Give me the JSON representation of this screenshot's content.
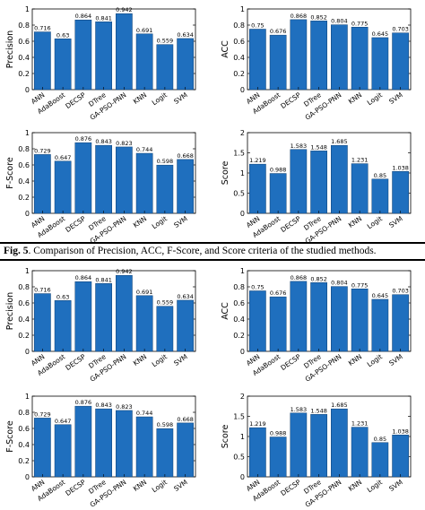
{
  "caption": {
    "label": "Fig. 5",
    "text": ". Comparison of Precision, ACC, F-Score, and Score criteria of the studied methods."
  },
  "colors": {
    "bar": "#1f6fbe",
    "bar_edge": "#0d3f73",
    "axis": "#000000"
  },
  "chart_data": [
    {
      "id": "precision-top",
      "type": "bar",
      "categories": [
        "ANN",
        "AdaBoost",
        "DECSP",
        "DTree",
        "GA-PSO-PNN",
        "KNN",
        "Logit",
        "SVM"
      ],
      "values": [
        0.716,
        0.63,
        0.864,
        0.841,
        0.942,
        0.691,
        0.559,
        0.634
      ],
      "labels": [
        "0.716",
        "0.63",
        "0.864",
        "0.841",
        "0.942",
        "0.691",
        "0.559",
        "0.634"
      ],
      "ylabel": "Precision",
      "ylim": [
        0,
        1
      ],
      "yticks": [
        "0",
        "0.2",
        "0.4",
        "0.6",
        "0.8",
        "1"
      ],
      "ytick_values": [
        0,
        0.2,
        0.4,
        0.6,
        0.8,
        1
      ]
    },
    {
      "id": "acc-top",
      "type": "bar",
      "categories": [
        "ANN",
        "AdaBoost",
        "DECSP",
        "DTree",
        "GA-PSO-PNN",
        "KNN",
        "Logit",
        "SVM"
      ],
      "values": [
        0.75,
        0.676,
        0.868,
        0.852,
        0.804,
        0.775,
        0.645,
        0.703
      ],
      "labels": [
        "0.75",
        "0.676",
        "0.868",
        "0.852",
        "0.804",
        "0.775",
        "0.645",
        "0.703"
      ],
      "ylabel": "ACC",
      "ylim": [
        0,
        1
      ],
      "yticks": [
        "0",
        "0.2",
        "0.4",
        "0.6",
        "0.8",
        "1"
      ],
      "ytick_values": [
        0,
        0.2,
        0.4,
        0.6,
        0.8,
        1
      ]
    },
    {
      "id": "fscore-top",
      "type": "bar",
      "categories": [
        "ANN",
        "AdaBoost",
        "DECSP",
        "DTree",
        "GA-PSO-PNN",
        "KNN",
        "Logit",
        "SVM"
      ],
      "values": [
        0.729,
        0.647,
        0.876,
        0.843,
        0.823,
        0.744,
        0.598,
        0.668
      ],
      "labels": [
        "0.729",
        "0.647",
        "0.876",
        "0.843",
        "0.823",
        "0.744",
        "0.598",
        "0.668"
      ],
      "ylabel": "F-Score",
      "ylim": [
        0,
        1
      ],
      "yticks": [
        "0",
        "0.2",
        "0.4",
        "0.6",
        "0.8",
        "1"
      ],
      "ytick_values": [
        0,
        0.2,
        0.4,
        0.6,
        0.8,
        1
      ]
    },
    {
      "id": "score-top",
      "type": "bar",
      "categories": [
        "ANN",
        "AdaBoost",
        "DECSP",
        "DTree",
        "GA-PSO-PNN",
        "KNN",
        "Logit",
        "SVM"
      ],
      "values": [
        1.219,
        0.988,
        1.583,
        1.548,
        1.685,
        1.231,
        0.85,
        1.038
      ],
      "labels": [
        "1.219",
        "0.988",
        "1.583",
        "1.548",
        "1.685",
        "1.231",
        "0.85",
        "1.038"
      ],
      "ylabel": "Score",
      "ylim": [
        0,
        2
      ],
      "yticks": [
        "0",
        "0.5",
        "1",
        "1.5",
        "2"
      ],
      "ytick_values": [
        0,
        0.5,
        1,
        1.5,
        2
      ]
    },
    {
      "id": "precision-bottom",
      "type": "bar",
      "categories": [
        "ANN",
        "AdaBoost",
        "DECSP",
        "DTree",
        "GA-PSO-PNN",
        "KNN",
        "Logit",
        "SVM"
      ],
      "values": [
        0.716,
        0.63,
        0.864,
        0.841,
        0.942,
        0.691,
        0.559,
        0.634
      ],
      "labels": [
        "0.716",
        "0.63",
        "0.864",
        "0.841",
        "0.942",
        "0.691",
        "0.559",
        "0.634"
      ],
      "ylabel": "Precision",
      "ylim": [
        0,
        1
      ],
      "yticks": [
        "0",
        "0.2",
        "0.4",
        "0.6",
        "0.8",
        "1"
      ],
      "ytick_values": [
        0,
        0.2,
        0.4,
        0.6,
        0.8,
        1
      ]
    },
    {
      "id": "acc-bottom",
      "type": "bar",
      "categories": [
        "ANN",
        "AdaBoost",
        "DECSP",
        "DTree",
        "GA-PSO-PNN",
        "KNN",
        "Logit",
        "SVM"
      ],
      "values": [
        0.75,
        0.676,
        0.868,
        0.852,
        0.804,
        0.775,
        0.645,
        0.703
      ],
      "labels": [
        "0.75",
        "0.676",
        "0.868",
        "0.852",
        "0.804",
        "0.775",
        "0.645",
        "0.703"
      ],
      "ylabel": "ACC",
      "ylim": [
        0,
        1
      ],
      "yticks": [
        "0",
        "0.2",
        "0.4",
        "0.6",
        "0.8",
        "1"
      ],
      "ytick_values": [
        0,
        0.2,
        0.4,
        0.6,
        0.8,
        1
      ]
    },
    {
      "id": "fscore-bottom",
      "type": "bar",
      "categories": [
        "ANN",
        "AdaBoost",
        "DECSP",
        "DTree",
        "GA-PSO-PNN",
        "KNN",
        "Logit",
        "SVM"
      ],
      "values": [
        0.729,
        0.647,
        0.876,
        0.843,
        0.823,
        0.744,
        0.598,
        0.668
      ],
      "labels": [
        "0.729",
        "0.647",
        "0.876",
        "0.843",
        "0.823",
        "0.744",
        "0.598",
        "0.668"
      ],
      "ylabel": "F-Score",
      "ylim": [
        0,
        1
      ],
      "yticks": [
        "0",
        "0.2",
        "0.4",
        "0.6",
        "0.8",
        "1"
      ],
      "ytick_values": [
        0,
        0.2,
        0.4,
        0.6,
        0.8,
        1
      ]
    },
    {
      "id": "score-bottom",
      "type": "bar",
      "categories": [
        "ANN",
        "AdaBoost",
        "DECSP",
        "DTree",
        "GA-PSO-PNN",
        "KNN",
        "Logit",
        "SVM"
      ],
      "values": [
        1.219,
        0.988,
        1.583,
        1.548,
        1.685,
        1.231,
        0.85,
        1.038
      ],
      "labels": [
        "1.219",
        "0.988",
        "1.583",
        "1.548",
        "1.685",
        "1.231",
        "0.85",
        "1.038"
      ],
      "ylabel": "Score",
      "ylim": [
        0,
        2
      ],
      "yticks": [
        "0",
        "0.5",
        "1",
        "1.5",
        "2"
      ],
      "ytick_values": [
        0,
        0.5,
        1,
        1.5,
        2
      ]
    }
  ]
}
